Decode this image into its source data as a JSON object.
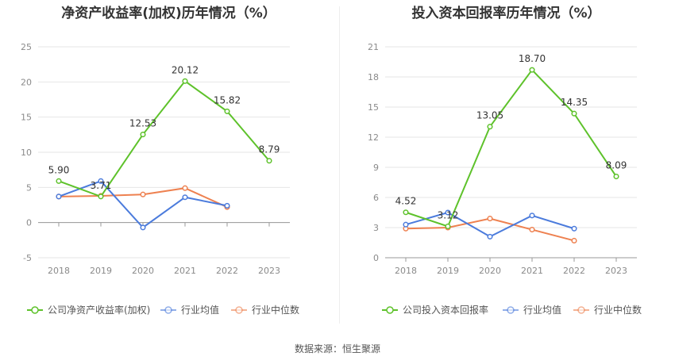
{
  "source": "数据来源：恒生聚源",
  "colors": {
    "company": "#5ec22b",
    "avg": "#4b7bdc",
    "median": "#ee8150",
    "grid": "#e6e6e6",
    "axis": "#999999"
  },
  "chart_data": [
    {
      "type": "line",
      "title": "净资产收益率(加权)历年情况（%）",
      "categories": [
        "2018",
        "2019",
        "2020",
        "2021",
        "2022",
        "2023"
      ],
      "ylim": [
        -5,
        25
      ],
      "yticks": [
        -5,
        0,
        5,
        10,
        15,
        20,
        25
      ],
      "grid": true,
      "legend_position": "bottom",
      "series": [
        {
          "name": "公司净资产收益率(加权)",
          "key": "company",
          "values": [
            5.9,
            3.71,
            12.53,
            20.12,
            15.82,
            8.79
          ],
          "labels": [
            "5.90",
            "3.71",
            "12.53",
            "20.12",
            "15.82",
            "8.79"
          ]
        },
        {
          "name": "行业均值",
          "key": "avg",
          "values": [
            3.7,
            5.9,
            -0.7,
            3.6,
            2.4,
            null
          ]
        },
        {
          "name": "行业中位数",
          "key": "median",
          "values": [
            3.7,
            3.8,
            4.0,
            4.9,
            2.2,
            null
          ]
        }
      ]
    },
    {
      "type": "line",
      "title": "投入资本回报率历年情况（%）",
      "categories": [
        "2018",
        "2019",
        "2020",
        "2021",
        "2022",
        "2023"
      ],
      "ylim": [
        0,
        21
      ],
      "yticks": [
        0,
        3,
        6,
        9,
        12,
        15,
        18,
        21
      ],
      "grid": true,
      "legend_position": "bottom",
      "series": [
        {
          "name": "公司投入资本回报率",
          "key": "company",
          "values": [
            4.52,
            3.12,
            13.05,
            18.7,
            14.35,
            8.09
          ],
          "labels": [
            "4.52",
            "3.12",
            "13.05",
            "18.70",
            "14.35",
            "8.09"
          ]
        },
        {
          "name": "行业均值",
          "key": "avg",
          "values": [
            3.3,
            4.5,
            2.1,
            4.2,
            2.9,
            null
          ]
        },
        {
          "name": "行业中位数",
          "key": "median",
          "values": [
            2.9,
            3.0,
            3.9,
            2.8,
            1.7,
            null
          ]
        }
      ]
    }
  ]
}
